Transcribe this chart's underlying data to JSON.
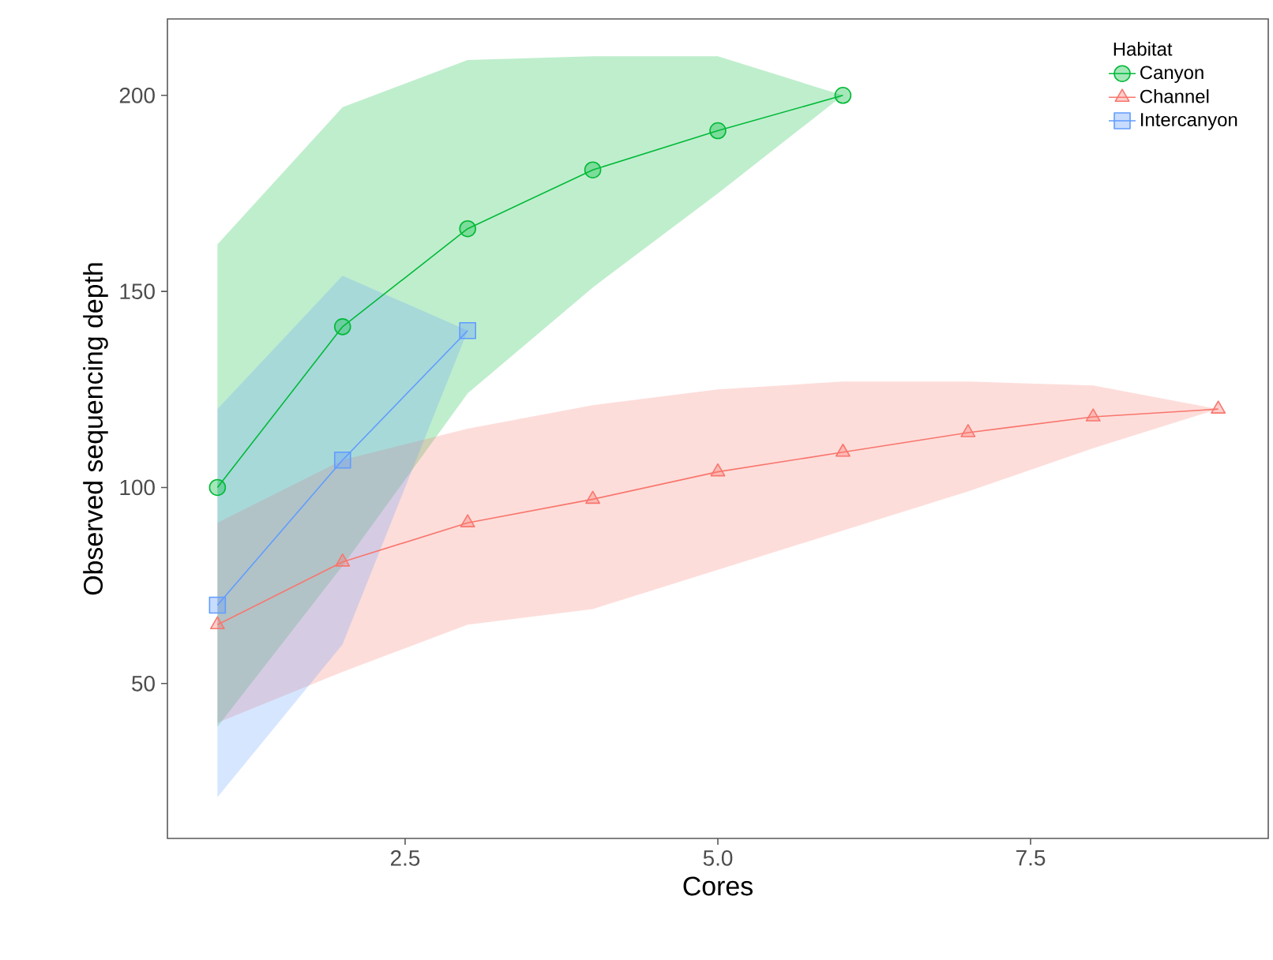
{
  "chart_data": {
    "type": "line",
    "xlabel": "Cores",
    "ylabel": "Observed sequencing depth",
    "legend_title": "Habitat",
    "legend": "top right",
    "grid": false,
    "line_style": "solid",
    "xlim": [
      0.6,
      9.4
    ],
    "ylim": [
      10.5,
      219.5
    ],
    "xticks": [
      2.5,
      {
        "value": 5,
        "label": "5.0"
      },
      7.5
    ],
    "yticks": [
      50,
      100,
      150,
      200
    ],
    "series": [
      {
        "name": "Canyon",
        "color": "#00ba38",
        "marker": "circle",
        "x": [
          1,
          2,
          3,
          4,
          5,
          6
        ],
        "values": [
          100,
          141,
          166,
          181,
          191,
          200
        ],
        "lower": [
          39,
          80,
          124,
          151,
          175,
          200
        ],
        "upper": [
          162,
          197,
          209,
          210,
          210,
          200
        ]
      },
      {
        "name": "Channel",
        "color": "#f8766d",
        "marker": "triangle",
        "x": [
          1,
          2,
          3,
          4,
          5,
          6,
          7,
          8,
          9
        ],
        "values": [
          65,
          81,
          91,
          97,
          104,
          109,
          114,
          118,
          120
        ],
        "lower": [
          40,
          53,
          65,
          69,
          79,
          89,
          99,
          110,
          120
        ],
        "upper": [
          91,
          107,
          115,
          121,
          125,
          127,
          127,
          126,
          120
        ]
      },
      {
        "name": "Intercanyon",
        "color": "#619cff",
        "marker": "square",
        "x": [
          1,
          2,
          3
        ],
        "values": [
          70,
          107,
          140
        ],
        "lower": [
          21,
          60,
          140
        ],
        "upper": [
          120,
          154,
          140
        ]
      }
    ]
  }
}
